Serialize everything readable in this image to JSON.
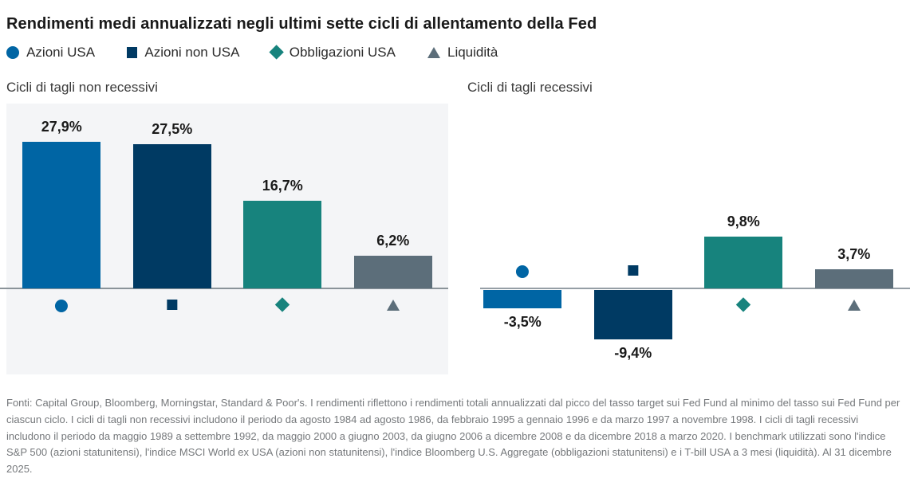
{
  "title": "Rendimenti medi annualizzati negli ultimi sette cicli di allentamento della Fed",
  "legend": [
    {
      "label": "Azioni USA",
      "marker": "circle",
      "color": "#0065A4"
    },
    {
      "label": "Azioni non USA",
      "marker": "square",
      "color": "#003A63"
    },
    {
      "label": "Obbligazioni USA",
      "marker": "diamond",
      "color": "#17837D"
    },
    {
      "label": "Liquidità",
      "marker": "triangle",
      "color": "#5C6E7A"
    }
  ],
  "chart_data": [
    {
      "type": "bar",
      "title": "Cicli di tagli non recessivi",
      "categories": [
        "Azioni USA",
        "Azioni non USA",
        "Obbligazioni USA",
        "Liquidità"
      ],
      "values": [
        27.9,
        27.5,
        16.7,
        6.2
      ],
      "value_labels": [
        "27,9%",
        "27,5%",
        "16,7%",
        "6,2%"
      ],
      "colors": [
        "#0065A4",
        "#003A63",
        "#17837D",
        "#5C6E7A"
      ],
      "markers": [
        "circle",
        "square",
        "diamond",
        "triangle"
      ],
      "ylim": [
        -12,
        35
      ],
      "grid": false,
      "panel_background": "#F4F5F7"
    },
    {
      "type": "bar",
      "title": "Cicli di tagli recessivi",
      "categories": [
        "Azioni USA",
        "Azioni non USA",
        "Obbligazioni USA",
        "Liquidità"
      ],
      "values": [
        -3.5,
        -9.4,
        9.8,
        3.7
      ],
      "value_labels": [
        "-3,5%",
        "-9,4%",
        "9,8%",
        "3,7%"
      ],
      "colors": [
        "#0065A4",
        "#003A63",
        "#17837D",
        "#5C6E7A"
      ],
      "markers": [
        "circle",
        "square",
        "diamond",
        "triangle"
      ],
      "ylim": [
        -12,
        35
      ],
      "grid": false,
      "panel_background": "#FFFFFF"
    }
  ],
  "footnote": "Fonti: Capital Group, Bloomberg, Morningstar, Standard & Poor's. I rendimenti riflettono i rendimenti totali annualizzati dal picco del tasso target sui Fed Fund al minimo del tasso sui Fed Fund per ciascun ciclo. I cicli di tagli non recessivi includono il periodo da agosto 1984 ad agosto 1986, da febbraio 1995 a gennaio 1996 e da marzo 1997 a novembre 1998. I cicli di tagli recessivi includono il periodo da maggio 1989 a settembre 1992, da maggio 2000 a giugno 2003, da giugno 2006 a dicembre 2008 e da dicembre 2018 a marzo 2020. I benchmark utilizzati sono l'indice S&P 500 (azioni statunitensi), l'indice MSCI World ex USA (azioni non statunitensi), l'indice Bloomberg U.S. Aggregate (obbligazioni statunitensi) e i T-bill USA a 3 mesi (liquidità). Al 31 dicembre 2025."
}
